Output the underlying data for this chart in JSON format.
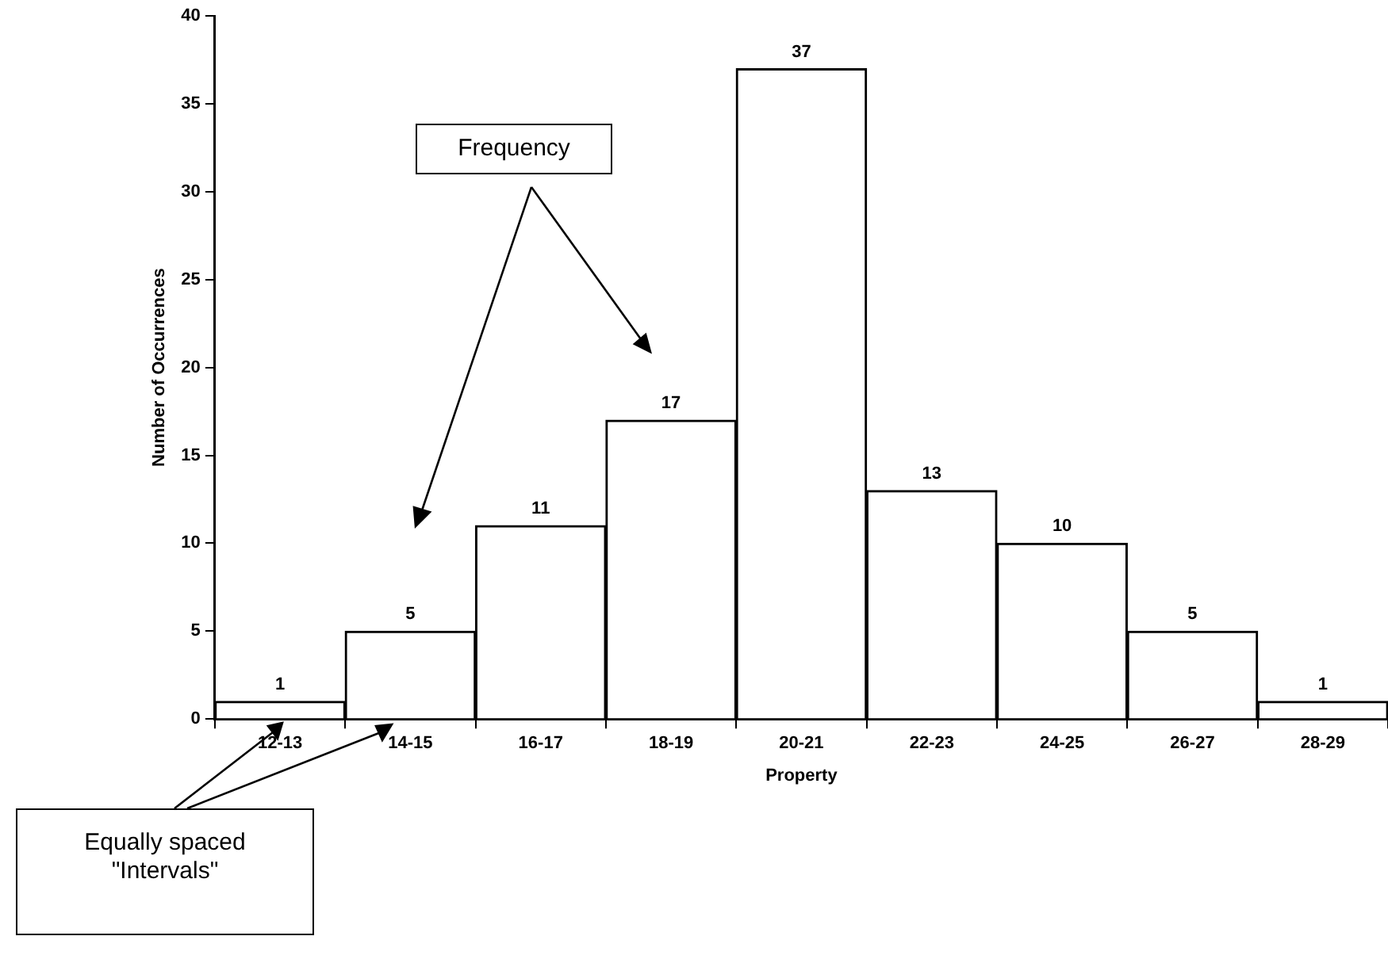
{
  "chart_data": {
    "type": "bar",
    "xlabel": "Property",
    "ylabel": "Number of Occurrences",
    "categories": [
      "12-13",
      "14-15",
      "16-17",
      "18-19",
      "20-21",
      "22-23",
      "24-25",
      "26-27",
      "28-29"
    ],
    "values": [
      1,
      5,
      11,
      17,
      37,
      13,
      10,
      5,
      1
    ],
    "color": "#ffffff",
    "ylim": [
      0,
      40
    ],
    "yticks": [
      0,
      5,
      10,
      15,
      20,
      25,
      30,
      35,
      40
    ],
    "data_labels": true,
    "annotations": [
      "Frequency",
      "Equally spaced \"Intervals\""
    ]
  }
}
